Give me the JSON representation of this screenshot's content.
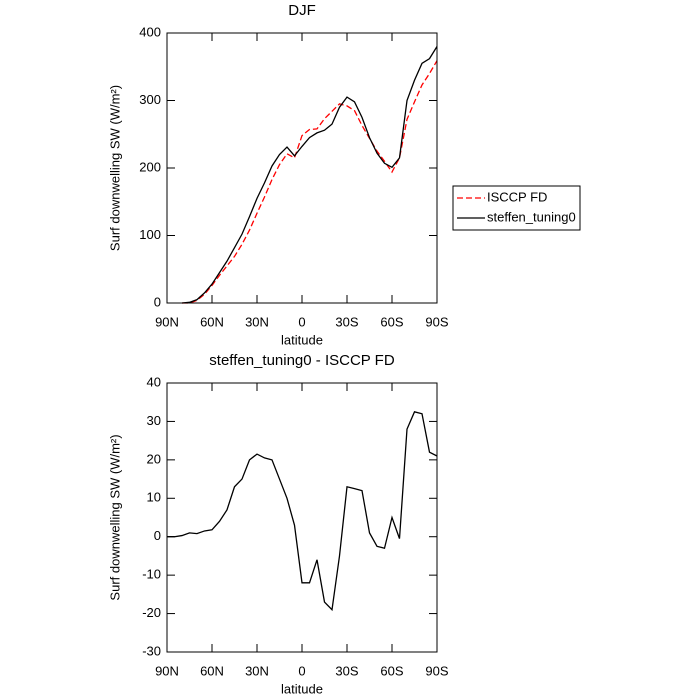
{
  "chart_data": [
    {
      "type": "line",
      "title": "DJF",
      "xlabel": "latitude",
      "ylabel": "Surf downwelling SW (W/m²)",
      "x": [
        80,
        75,
        70,
        65,
        60,
        55,
        50,
        45,
        40,
        35,
        30,
        25,
        20,
        15,
        10,
        5,
        0,
        -5,
        -10,
        -15,
        -20,
        -25,
        -30,
        -35,
        -40,
        -45,
        -50,
        -55,
        -60,
        -65,
        -70,
        -75,
        -80,
        -85,
        -90
      ],
      "series": [
        {
          "name": "ISCCP FD",
          "color": "#ff0000",
          "linestyle": "dashed",
          "values": [
            0,
            0,
            4,
            13,
            26,
            41,
            55,
            69,
            87,
            108,
            133,
            157,
            183,
            205,
            221,
            215,
            248,
            257,
            258,
            273,
            284,
            295,
            292,
            285,
            263,
            244,
            225,
            210,
            194,
            215,
            272,
            298,
            323,
            340,
            359
          ]
        },
        {
          "name": "steffen_tuning0",
          "color": "#000000",
          "linestyle": "solid",
          "values": [
            0,
            1,
            5,
            15,
            28,
            45,
            62,
            82,
            102,
            128,
            155,
            178,
            203,
            220,
            231,
            218,
            232,
            245,
            252,
            256,
            265,
            290,
            305,
            298,
            275,
            245,
            222,
            207,
            201,
            215,
            300,
            330,
            355,
            362,
            380
          ]
        }
      ],
      "xlim": [
        90,
        -90
      ],
      "xticks": [
        {
          "value": 90,
          "label": "90N"
        },
        {
          "value": 60,
          "label": "60N"
        },
        {
          "value": 30,
          "label": "30N"
        },
        0,
        {
          "value": -30,
          "label": "30S"
        },
        {
          "value": -60,
          "label": "60S"
        },
        {
          "value": -90,
          "label": "90S"
        }
      ],
      "ylim": [
        0,
        400
      ],
      "yticks": [
        0,
        100,
        200,
        300,
        400
      ],
      "legend": "right"
    },
    {
      "type": "line",
      "title": "steffen_tuning0 - ISCCP FD",
      "xlabel": "latitude",
      "ylabel": "Surf downwelling SW (W/m²)",
      "x": [
        90,
        85,
        80,
        75,
        70,
        65,
        60,
        55,
        50,
        45,
        40,
        35,
        30,
        25,
        20,
        15,
        10,
        5,
        0,
        -5,
        -10,
        -15,
        -20,
        -25,
        -30,
        -35,
        -40,
        -45,
        -50,
        -55,
        -60,
        -65,
        -70,
        -75,
        -80,
        -85,
        -90
      ],
      "color": "#000000",
      "values": [
        0,
        0,
        0.3,
        1,
        0.8,
        1.5,
        1.8,
        4,
        7,
        13,
        15,
        20,
        21.5,
        20.5,
        20,
        15,
        10,
        3,
        -12,
        -12,
        -6,
        -17,
        -19,
        -5,
        13,
        12.5,
        12,
        1,
        -2.5,
        -3,
        5,
        -0.5,
        28,
        32.5,
        32,
        22,
        21
      ],
      "xlim": [
        90,
        -90
      ],
      "xticks": [
        {
          "value": 90,
          "label": "90N"
        },
        {
          "value": 60,
          "label": "60N"
        },
        {
          "value": 30,
          "label": "30N"
        },
        0,
        {
          "value": -30,
          "label": "30S"
        },
        {
          "value": -60,
          "label": "60S"
        },
        {
          "value": -90,
          "label": "90S"
        }
      ],
      "ylim": [
        -30,
        40
      ],
      "yticks": [
        -30,
        -20,
        -10,
        0,
        10,
        20,
        30,
        40
      ]
    }
  ]
}
